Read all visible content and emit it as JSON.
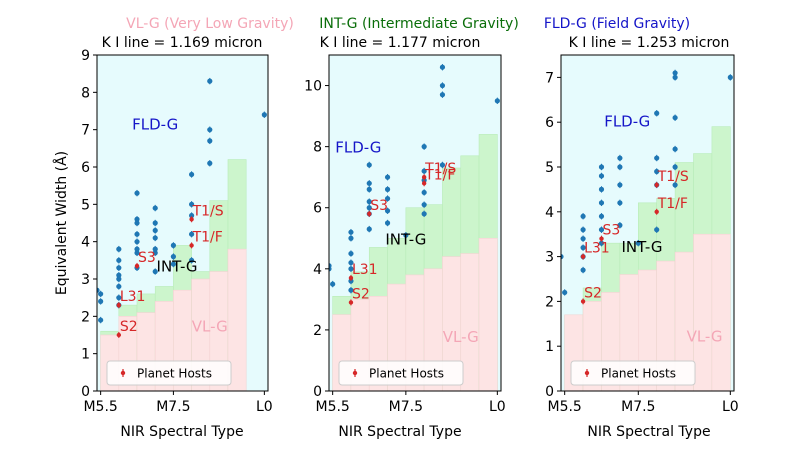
{
  "legend_top": [
    {
      "text": "VL-G (Very Low Gravity)",
      "color": "#f4a6b6"
    },
    {
      "text": "INT-G (Intermediate Gravity)",
      "color": "#0a6e0a"
    },
    {
      "text": "FLD-G (Field Gravity)",
      "color": "#1515c8"
    }
  ],
  "colors": {
    "vlg_fill": "#fde4e4",
    "intg_fill": "#ccf5cc",
    "fldg_fill": "#e6fbfd",
    "points": "#1f77b4",
    "hosts": "#d62728",
    "vlg_text": "#f4a6b6",
    "intg_text": "#000000",
    "fldg_text": "#1515c8"
  },
  "shared": {
    "ylabel": "Equivalent Width (Å)",
    "xlabel": "NIR Spectral Type",
    "legend_label": "Planet Hosts",
    "zone_labels": {
      "fldg": "FLD-G",
      "intg": "INT-G",
      "vlg": "VL-G"
    }
  },
  "chart_data": [
    {
      "type": "scatter",
      "title": "K I line = 1.169 micron",
      "xlim": [
        5.4,
        10.1
      ],
      "ylim": [
        0,
        9
      ],
      "xticks": [
        {
          "v": 5.5,
          "label": "M5.5"
        },
        {
          "v": 7.5,
          "label": "M7.5"
        },
        {
          "v": 10,
          "label": "L0"
        }
      ],
      "yticks": [
        0,
        1,
        2,
        3,
        4,
        5,
        6,
        7,
        8,
        9
      ],
      "thresholds": [
        {
          "x0": 5.5,
          "x1": 6.0,
          "vlg": 1.5,
          "intg": 1.6
        },
        {
          "x0": 6.0,
          "x1": 6.5,
          "vlg": 2.0,
          "intg": 2.3
        },
        {
          "x0": 6.5,
          "x1": 7.0,
          "vlg": 2.1,
          "intg": 2.6
        },
        {
          "x0": 7.0,
          "x1": 7.5,
          "vlg": 2.4,
          "intg": 2.8
        },
        {
          "x0": 7.5,
          "x1": 8.0,
          "vlg": 2.7,
          "intg": 3.9
        },
        {
          "x0": 8.0,
          "x1": 8.5,
          "vlg": 3.0,
          "intg": 3.2
        },
        {
          "x0": 8.5,
          "x1": 9.0,
          "vlg": 3.2,
          "intg": 5.1
        },
        {
          "x0": 9.0,
          "x1": 9.5,
          "vlg": 3.8,
          "intg": 6.2
        }
      ],
      "points": [
        [
          5.4,
          2.7
        ],
        [
          5.5,
          1.9
        ],
        [
          5.5,
          2.4
        ],
        [
          5.5,
          2.6
        ],
        [
          6.0,
          2.3
        ],
        [
          6.0,
          2.5
        ],
        [
          6.0,
          2.8
        ],
        [
          6.0,
          3.0
        ],
        [
          6.0,
          3.1
        ],
        [
          6.0,
          3.3
        ],
        [
          6.0,
          3.5
        ],
        [
          6.0,
          3.8
        ],
        [
          6.5,
          3.3
        ],
        [
          6.5,
          3.7
        ],
        [
          6.5,
          3.8
        ],
        [
          6.5,
          4.0
        ],
        [
          6.5,
          4.2
        ],
        [
          6.5,
          4.5
        ],
        [
          6.5,
          4.6
        ],
        [
          6.5,
          5.3
        ],
        [
          7.0,
          3.2
        ],
        [
          7.0,
          3.7
        ],
        [
          7.0,
          3.8
        ],
        [
          7.0,
          4.1
        ],
        [
          7.0,
          4.3
        ],
        [
          7.0,
          4.5
        ],
        [
          7.0,
          4.9
        ],
        [
          7.5,
          3.4
        ],
        [
          7.5,
          3.6
        ],
        [
          7.5,
          3.9
        ],
        [
          8.0,
          3.5
        ],
        [
          8.0,
          4.2
        ],
        [
          8.0,
          4.7
        ],
        [
          8.0,
          5.0
        ],
        [
          8.0,
          5.8
        ],
        [
          8.5,
          6.1
        ],
        [
          8.5,
          6.7
        ],
        [
          8.5,
          7.0
        ],
        [
          8.5,
          8.3
        ],
        [
          10.0,
          7.4
        ]
      ],
      "hosts": [
        {
          "label": "S2",
          "x": 6.0,
          "y": 1.5
        },
        {
          "label": "L31",
          "x": 6.0,
          "y": 2.3
        },
        {
          "label": "S3",
          "x": 6.5,
          "y": 3.35
        },
        {
          "label": "T1/F",
          "x": 8.0,
          "y": 3.9
        },
        {
          "label": "T1/S",
          "x": 8.0,
          "y": 4.6
        }
      ],
      "label_pos": {
        "fldg": [
          7.0,
          7.0
        ],
        "intg": [
          7.6,
          3.2
        ],
        "vlg": [
          8.5,
          1.6
        ]
      }
    },
    {
      "type": "scatter",
      "title": "K I line = 1.177 micron",
      "xlim": [
        5.4,
        10.1
      ],
      "ylim": [
        0,
        11
      ],
      "xticks": [
        {
          "v": 5.5,
          "label": "M5.5"
        },
        {
          "v": 7.5,
          "label": "M7.5"
        },
        {
          "v": 10,
          "label": "L0"
        }
      ],
      "yticks": [
        0,
        2,
        4,
        6,
        8,
        10
      ],
      "thresholds": [
        {
          "x0": 5.5,
          "x1": 6.0,
          "vlg": 2.5,
          "intg": 3.1
        },
        {
          "x0": 6.0,
          "x1": 6.5,
          "vlg": 3.0,
          "intg": 3.9
        },
        {
          "x0": 6.5,
          "x1": 7.0,
          "vlg": 3.1,
          "intg": 4.7
        },
        {
          "x0": 7.0,
          "x1": 7.5,
          "vlg": 3.5,
          "intg": 5.0
        },
        {
          "x0": 7.5,
          "x1": 8.0,
          "vlg": 3.8,
          "intg": 6.0
        },
        {
          "x0": 8.0,
          "x1": 8.5,
          "vlg": 4.0,
          "intg": 6.1
        },
        {
          "x0": 8.5,
          "x1": 9.0,
          "vlg": 4.4,
          "intg": 7.3
        },
        {
          "x0": 9.0,
          "x1": 9.5,
          "vlg": 4.5,
          "intg": 7.7
        },
        {
          "x0": 9.5,
          "x1": 10.0,
          "vlg": 5.0,
          "intg": 8.4
        }
      ],
      "points": [
        [
          5.4,
          4.0
        ],
        [
          5.4,
          4.1
        ],
        [
          5.5,
          3.5
        ],
        [
          6.0,
          3.3
        ],
        [
          6.0,
          3.6
        ],
        [
          6.0,
          4.0
        ],
        [
          6.0,
          4.2
        ],
        [
          6.0,
          4.5
        ],
        [
          6.0,
          5.0
        ],
        [
          6.0,
          5.2
        ],
        [
          6.5,
          5.3
        ],
        [
          6.5,
          5.8
        ],
        [
          6.5,
          6.0
        ],
        [
          6.5,
          6.2
        ],
        [
          6.5,
          6.6
        ],
        [
          6.5,
          6.8
        ],
        [
          6.5,
          7.4
        ],
        [
          7.0,
          5.5
        ],
        [
          7.0,
          5.9
        ],
        [
          7.0,
          6.3
        ],
        [
          7.0,
          6.6
        ],
        [
          7.0,
          7.0
        ],
        [
          7.5,
          5.1
        ],
        [
          8.0,
          5.8
        ],
        [
          8.0,
          6.1
        ],
        [
          8.0,
          6.5
        ],
        [
          8.0,
          6.9
        ],
        [
          8.0,
          7.2
        ],
        [
          8.0,
          8.0
        ],
        [
          8.5,
          7.4
        ],
        [
          8.5,
          9.7
        ],
        [
          8.5,
          10.0
        ],
        [
          8.5,
          10.6
        ],
        [
          10.0,
          9.5
        ]
      ],
      "hosts": [
        {
          "label": "S2",
          "x": 6.0,
          "y": 2.9
        },
        {
          "label": "L31",
          "x": 6.0,
          "y": 3.7
        },
        {
          "label": "S3",
          "x": 6.5,
          "y": 5.8
        },
        {
          "label": "T1/F",
          "x": 8.0,
          "y": 6.8
        },
        {
          "label": "T1/S",
          "x": 8.0,
          "y": 7.0
        }
      ],
      "label_pos": {
        "fldg": [
          6.2,
          7.8
        ],
        "intg": [
          7.5,
          4.8
        ],
        "vlg": [
          9.0,
          1.6
        ]
      }
    },
    {
      "type": "scatter",
      "title": "K I line = 1.253 micron",
      "xlim": [
        5.4,
        10.1
      ],
      "ylim": [
        0,
        7.5
      ],
      "xticks": [
        {
          "v": 5.5,
          "label": "M5.5"
        },
        {
          "v": 7.5,
          "label": "M7.5"
        },
        {
          "v": 10,
          "label": "L0"
        }
      ],
      "yticks": [
        0,
        1,
        2,
        3,
        4,
        5,
        6,
        7
      ],
      "thresholds": [
        {
          "x0": 5.5,
          "x1": 6.0,
          "vlg": 1.7,
          "intg": 1.7
        },
        {
          "x0": 6.0,
          "x1": 6.5,
          "vlg": 2.0,
          "intg": 2.3
        },
        {
          "x0": 6.5,
          "x1": 7.0,
          "vlg": 2.2,
          "intg": 3.3
        },
        {
          "x0": 7.0,
          "x1": 7.5,
          "vlg": 2.6,
          "intg": 3.3
        },
        {
          "x0": 7.5,
          "x1": 8.0,
          "vlg": 2.7,
          "intg": 4.2
        },
        {
          "x0": 8.0,
          "x1": 8.5,
          "vlg": 2.9,
          "intg": 4.3
        },
        {
          "x0": 8.5,
          "x1": 9.0,
          "vlg": 3.1,
          "intg": 5.1
        },
        {
          "x0": 9.0,
          "x1": 9.5,
          "vlg": 3.5,
          "intg": 5.3
        },
        {
          "x0": 9.5,
          "x1": 10.0,
          "vlg": 3.5,
          "intg": 5.9
        }
      ],
      "points": [
        [
          5.4,
          3.0
        ],
        [
          5.5,
          2.2
        ],
        [
          6.0,
          2.7
        ],
        [
          6.0,
          3.0
        ],
        [
          6.0,
          3.2
        ],
        [
          6.0,
          3.4
        ],
        [
          6.0,
          3.6
        ],
        [
          6.0,
          3.9
        ],
        [
          6.5,
          3.3
        ],
        [
          6.5,
          3.6
        ],
        [
          6.5,
          3.9
        ],
        [
          6.5,
          4.2
        ],
        [
          6.5,
          4.5
        ],
        [
          6.5,
          4.8
        ],
        [
          6.5,
          5.0
        ],
        [
          7.0,
          3.7
        ],
        [
          7.0,
          4.2
        ],
        [
          7.0,
          4.6
        ],
        [
          7.0,
          5.0
        ],
        [
          7.0,
          5.2
        ],
        [
          7.5,
          3.3
        ],
        [
          8.0,
          3.6
        ],
        [
          8.0,
          4.6
        ],
        [
          8.0,
          4.9
        ],
        [
          8.0,
          5.2
        ],
        [
          8.0,
          6.2
        ],
        [
          8.5,
          4.6
        ],
        [
          8.5,
          5.0
        ],
        [
          8.5,
          5.4
        ],
        [
          8.5,
          6.1
        ],
        [
          8.5,
          7.0
        ],
        [
          8.5,
          7.1
        ],
        [
          10.0,
          7.0
        ]
      ],
      "hosts": [
        {
          "label": "S2",
          "x": 6.0,
          "y": 2.0
        },
        {
          "label": "L31",
          "x": 6.0,
          "y": 3.0
        },
        {
          "label": "S3",
          "x": 6.5,
          "y": 3.4
        },
        {
          "label": "T1/F",
          "x": 8.0,
          "y": 4.0
        },
        {
          "label": "T1/S",
          "x": 8.0,
          "y": 4.6
        }
      ],
      "label_pos": {
        "fldg": [
          7.2,
          5.9
        ],
        "intg": [
          7.6,
          3.1
        ],
        "vlg": [
          9.3,
          1.1
        ]
      }
    }
  ]
}
